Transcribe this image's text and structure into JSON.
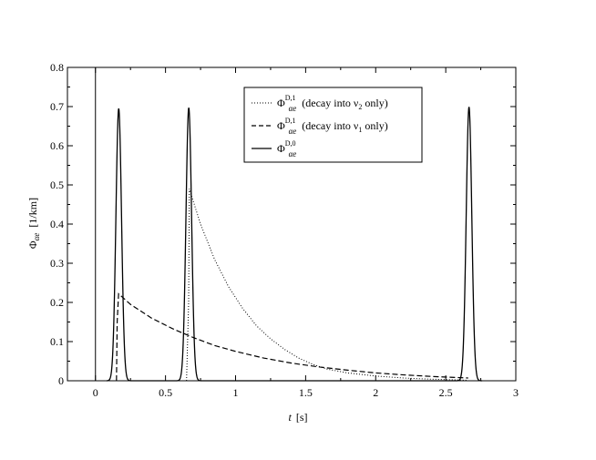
{
  "chart_data": {
    "type": "line",
    "xlabel": {
      "symbol": "t",
      "unit": "[s]"
    },
    "ylabel": {
      "symbol": "Φ",
      "subscript": "αe",
      "unit": "[1/km]"
    },
    "xlim": [
      -0.2,
      3
    ],
    "ylim": [
      0,
      0.8
    ],
    "xticks": [
      "0",
      "0.5",
      "1",
      "1.5",
      "2",
      "2.5",
      "3"
    ],
    "yticks": [
      "0",
      "0.1",
      "0.2",
      "0.3",
      "0.4",
      "0.5",
      "0.6",
      "0.7",
      "0.8"
    ],
    "grid": false,
    "legend_position": "top-right",
    "series": [
      {
        "style": "dotted",
        "legend": {
          "base": "Φ",
          "sup": "D,1",
          "sub": "αe",
          "note": "(decay into ν",
          "note_sub": "2",
          "note_end": " only)"
        },
        "points": [
          [
            0.65,
            0
          ],
          [
            0.665,
            0.2
          ],
          [
            0.67,
            0.49
          ],
          [
            0.75,
            0.4
          ],
          [
            0.85,
            0.31
          ],
          [
            0.95,
            0.24
          ],
          [
            1.05,
            0.185
          ],
          [
            1.15,
            0.14
          ],
          [
            1.25,
            0.107
          ],
          [
            1.35,
            0.08
          ],
          [
            1.45,
            0.058
          ],
          [
            1.55,
            0.042
          ],
          [
            1.65,
            0.03
          ],
          [
            1.8,
            0.02
          ],
          [
            2.0,
            0.012
          ],
          [
            2.2,
            0.007
          ],
          [
            2.4,
            0.004
          ],
          [
            2.6,
            0.002
          ],
          [
            2.66,
            0.001
          ]
        ]
      },
      {
        "style": "dashed",
        "legend": {
          "base": "Φ",
          "sup": "D,1",
          "sub": "αe",
          "note": "(decay into ν",
          "note_sub": "1",
          "note_end": " only)"
        },
        "points": [
          [
            0.15,
            0
          ],
          [
            0.155,
            0.15
          ],
          [
            0.165,
            0.222
          ],
          [
            0.25,
            0.195
          ],
          [
            0.4,
            0.16
          ],
          [
            0.55,
            0.133
          ],
          [
            0.7,
            0.11
          ],
          [
            0.85,
            0.09
          ],
          [
            1.0,
            0.075
          ],
          [
            1.2,
            0.058
          ],
          [
            1.4,
            0.045
          ],
          [
            1.6,
            0.035
          ],
          [
            1.8,
            0.027
          ],
          [
            2.0,
            0.02
          ],
          [
            2.2,
            0.015
          ],
          [
            2.4,
            0.011
          ],
          [
            2.6,
            0.008
          ],
          [
            2.66,
            0.007
          ]
        ]
      },
      {
        "style": "solid",
        "legend": {
          "base": "Φ",
          "sup": "D,0",
          "sub": "αe"
        },
        "peaks": [
          {
            "center": 0.166,
            "height": 0.695,
            "width": 0.02
          },
          {
            "center": 0.666,
            "height": 0.697,
            "width": 0.02
          },
          {
            "center": 2.666,
            "height": 0.699,
            "width": 0.02
          }
        ],
        "range": [
          0.08,
          2.76
        ]
      }
    ],
    "vertical_line_x": 0
  }
}
